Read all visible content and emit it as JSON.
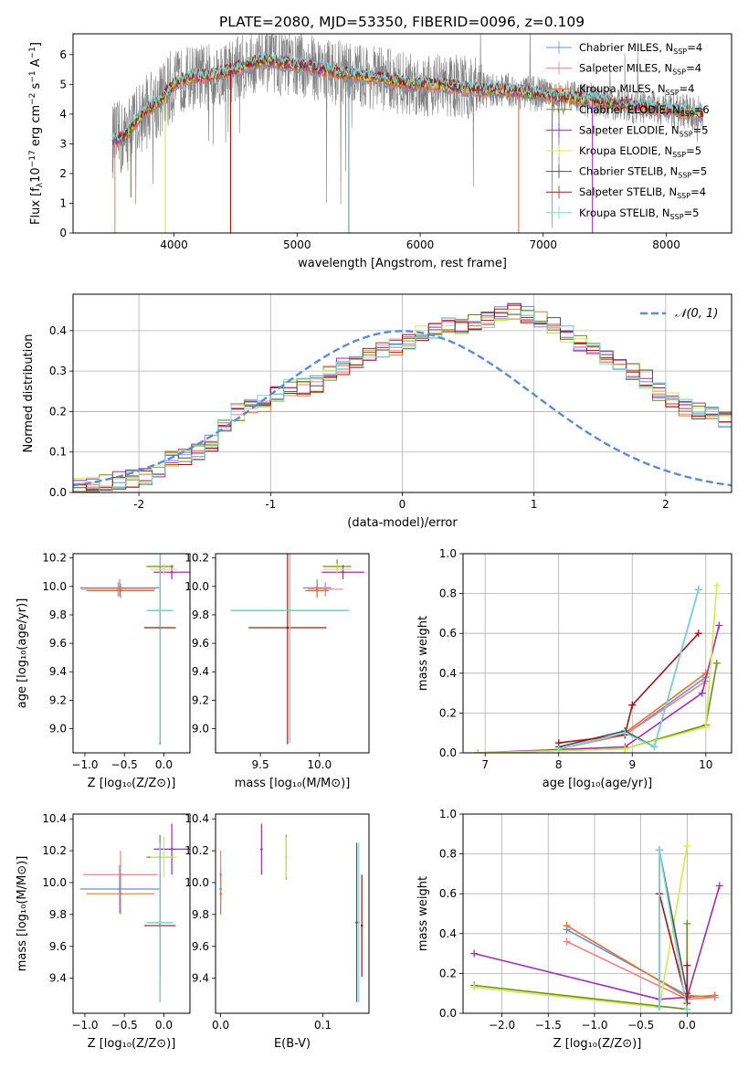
{
  "figure_title": "PLATE=2080, MJD=53350, FIBERID=0096, z=0.109",
  "colors": {
    "Chabrier MILES": "#6a8fdc",
    "Salpeter MILES": "#f08080",
    "Kroupa MILES": "#e8742a",
    "Chabrier ELODIE": "#6b8e23",
    "Salpeter ELODIE": "#9c2fb8",
    "Kroupa ELODIE": "#d4ea4c",
    "Chabrier STELIB": "#505050",
    "Salpeter STELIB": "#a81414",
    "Kroupa STELIB": "#7fd6d6",
    "normal_curve": "#5b8bd8",
    "grid": "#b0b0b0"
  },
  "chart_data": [
    {
      "id": "spectrum",
      "type": "line",
      "title": "PLATE=2080, MJD=53350, FIBERID=0096, z=0.109",
      "xlabel": "wavelength [Angstrom, rest frame]",
      "ylabel_parts": [
        "Flux [f",
        "λ",
        "10",
        "−17",
        " erg cm",
        "−2",
        " s",
        "−1",
        " A",
        "−1",
        "]"
      ],
      "xlim": [
        3180,
        8530
      ],
      "ylim": [
        0,
        6.7
      ],
      "xticks": [
        4000,
        5000,
        6000,
        7000,
        8000
      ],
      "yticks": [
        0,
        1,
        2,
        3,
        4,
        5,
        6
      ],
      "grid": false,
      "legend_position": "right",
      "legend": [
        {
          "name": "Chabrier MILES",
          "n": "4"
        },
        {
          "name": "Salpeter MILES",
          "n": "4"
        },
        {
          "name": "Kroupa MILES",
          "n": "4"
        },
        {
          "name": "Chabrier ELODIE",
          "n": "6"
        },
        {
          "name": "Salpeter ELODIE",
          "n": "5"
        },
        {
          "name": "Kroupa ELODIE",
          "n": "5"
        },
        {
          "name": "Chabrier STELIB",
          "n": "5"
        },
        {
          "name": "Salpeter STELIB",
          "n": "4"
        },
        {
          "name": "Kroupa STELIB",
          "n": "5"
        }
      ],
      "data_wavelength_range": [
        3500,
        8300
      ],
      "continuum_points": [
        [
          3500,
          3.1
        ],
        [
          3600,
          3.2
        ],
        [
          3700,
          3.8
        ],
        [
          3800,
          4.2
        ],
        [
          3900,
          4.5
        ],
        [
          4000,
          5.0
        ],
        [
          4100,
          5.2
        ],
        [
          4300,
          5.3
        ],
        [
          4500,
          5.5
        ],
        [
          4700,
          5.8
        ],
        [
          4900,
          5.7
        ],
        [
          5100,
          5.6
        ],
        [
          5300,
          5.4
        ],
        [
          5500,
          5.3
        ],
        [
          5700,
          5.2
        ],
        [
          5900,
          5.0
        ],
        [
          6100,
          5.0
        ],
        [
          6300,
          4.9
        ],
        [
          6500,
          4.8
        ],
        [
          6700,
          4.8
        ],
        [
          6900,
          4.7
        ],
        [
          7100,
          4.6
        ],
        [
          7300,
          4.5
        ],
        [
          7500,
          4.4
        ],
        [
          7700,
          4.3
        ],
        [
          7900,
          4.2
        ],
        [
          8100,
          4.1
        ],
        [
          8300,
          4.0
        ]
      ],
      "model_dips": [
        [
          3520,
          0.0
        ],
        [
          3650,
          1.2
        ],
        [
          3930,
          0.0
        ],
        [
          4460,
          0.0
        ],
        [
          5420,
          0.0
        ],
        [
          6800,
          0.0
        ],
        [
          7400,
          0.0
        ]
      ]
    },
    {
      "id": "residuals",
      "type": "line",
      "xlabel": "(data-model)/error",
      "ylabel": "Normed distribution",
      "xlim": [
        -2.5,
        2.5
      ],
      "ylim": [
        0,
        0.49
      ],
      "xticks": [
        -2,
        -1,
        0,
        1,
        2
      ],
      "yticks": [
        0.0,
        0.1,
        0.2,
        0.3,
        0.4
      ],
      "grid": true,
      "legend_position": "top-right",
      "legend": [
        "𝒩(0, 1)"
      ],
      "bin_width": 0.1,
      "histogram_envelope": [
        0.02,
        0.02,
        0.025,
        0.03,
        0.035,
        0.04,
        0.06,
        0.08,
        0.085,
        0.1,
        0.12,
        0.16,
        0.2,
        0.21,
        0.22,
        0.24,
        0.26,
        0.26,
        0.27,
        0.29,
        0.31,
        0.33,
        0.34,
        0.35,
        0.36,
        0.37,
        0.39,
        0.4,
        0.41,
        0.41,
        0.42,
        0.43,
        0.44,
        0.45,
        0.44,
        0.43,
        0.41,
        0.39,
        0.37,
        0.35,
        0.33,
        0.32,
        0.3,
        0.28,
        0.25,
        0.23,
        0.21,
        0.2,
        0.19,
        0.18,
        0.16,
        0.15,
        0.14,
        0.12,
        0.11,
        0.1,
        0.08,
        0.07,
        0.06,
        0.05,
        0.045,
        0.04,
        0.035,
        0.03,
        0.025,
        0.02,
        0.02,
        0.015,
        0.015,
        0.015
      ]
    },
    {
      "id": "age_vs_Z",
      "type": "scatter",
      "xlabel": "Z [log₁₀(Z/Z⊙)]",
      "ylabel": "age  [log₁₀(age/yr)]",
      "xlim": [
        -1.15,
        0.33
      ],
      "ylim": [
        8.83,
        10.23
      ],
      "xticks": [
        -1.0,
        -0.5,
        0.0
      ],
      "xticklabels": [
        "−1.0",
        "−0.5",
        "0.0"
      ],
      "yticks": [
        9.0,
        9.2,
        9.4,
        9.6,
        9.8,
        10.0,
        10.2
      ],
      "grid": false,
      "points": [
        {
          "model": "Chabrier MILES",
          "x": -0.56,
          "xerr": 0.5,
          "y": 9.99,
          "yerr": 0.06
        },
        {
          "model": "Salpeter MILES",
          "x": -0.58,
          "xerr": 0.47,
          "y": 9.98,
          "yerr": 0.05
        },
        {
          "model": "Kroupa MILES",
          "x": -0.55,
          "xerr": 0.43,
          "y": 9.97,
          "yerr": 0.05
        },
        {
          "model": "Chabrier ELODIE",
          "x": -0.05,
          "xerr": 0.17,
          "y": 10.14,
          "yerr": 0.05
        },
        {
          "model": "Salpeter ELODIE",
          "x": 0.1,
          "xerr": 0.23,
          "y": 10.1,
          "yerr": 0.05
        },
        {
          "model": "Kroupa ELODIE",
          "x": 0.0,
          "xerr": 0.17,
          "y": 10.12,
          "yerr": 0.04
        },
        {
          "model": "Chabrier STELIB",
          "x": -0.05,
          "xerr": 0.15,
          "y": 9.83,
          "yerr": 0.93
        },
        {
          "model": "Salpeter STELIB",
          "x": -0.05,
          "xerr": 0.2,
          "y": 9.71,
          "yerr": 0.82
        },
        {
          "model": "Kroupa STELIB",
          "x": -0.05,
          "xerr": 0.17,
          "y": 9.83,
          "yerr": 0.93
        }
      ]
    },
    {
      "id": "age_vs_mass",
      "type": "scatter",
      "xlabel": "mass [log₁₀(M/M⊙)]",
      "xlim": [
        9.12,
        10.42
      ],
      "ylim": [
        8.83,
        10.23
      ],
      "xticks": [
        9.5,
        10.0
      ],
      "xticklabels": [
        "9.5",
        "10.0"
      ],
      "yticks": [
        9.0,
        9.2,
        9.4,
        9.6,
        9.8,
        10.0,
        10.2
      ],
      "grid": false,
      "points": [
        {
          "model": "Chabrier MILES",
          "x": 9.98,
          "xerr": 0.12,
          "y": 9.99,
          "yerr": 0.06
        },
        {
          "model": "Salpeter MILES",
          "x": 10.05,
          "xerr": 0.15,
          "y": 9.98,
          "yerr": 0.05
        },
        {
          "model": "Kroupa MILES",
          "x": 9.98,
          "xerr": 0.1,
          "y": 9.97,
          "yerr": 0.05
        },
        {
          "model": "Chabrier ELODIE",
          "x": 10.15,
          "xerr": 0.12,
          "y": 10.14,
          "yerr": 0.05
        },
        {
          "model": "Salpeter ELODIE",
          "x": 10.2,
          "xerr": 0.18,
          "y": 10.1,
          "yerr": 0.05
        },
        {
          "model": "Kroupa ELODIE",
          "x": 10.15,
          "xerr": 0.12,
          "y": 10.12,
          "yerr": 0.04
        },
        {
          "model": "Chabrier STELIB",
          "x": 9.75,
          "xerr": 0.5,
          "y": 9.83,
          "yerr": 0.93
        },
        {
          "model": "Salpeter STELIB",
          "x": 9.73,
          "xerr": 0.33,
          "y": 9.71,
          "yerr": 0.82
        },
        {
          "model": "Kroupa STELIB",
          "x": 9.75,
          "xerr": 0.5,
          "y": 9.83,
          "yerr": 0.93
        }
      ]
    },
    {
      "id": "weight_vs_age",
      "type": "line",
      "xlabel": "age  [log₁₀(age/yr)]",
      "ylabel": "mass weight",
      "xlim": [
        6.7,
        10.35
      ],
      "ylim": [
        0,
        1.0
      ],
      "xticks": [
        7,
        8,
        9,
        10
      ],
      "yticks": [
        0.0,
        0.2,
        0.4,
        0.6,
        0.8,
        1.0
      ],
      "grid": true,
      "series": [
        {
          "model": "Chabrier MILES",
          "x": [
            8.0,
            8.9,
            10.0
          ],
          "y": [
            0.02,
            0.09,
            0.38
          ]
        },
        {
          "model": "Salpeter MILES",
          "x": [
            8.0,
            8.9,
            10.0
          ],
          "y": [
            0.02,
            0.09,
            0.36
          ]
        },
        {
          "model": "Kroupa MILES",
          "x": [
            8.0,
            8.9,
            10.0
          ],
          "y": [
            0.02,
            0.1,
            0.4
          ]
        },
        {
          "model": "Chabrier ELODIE",
          "x": [
            6.9,
            8.9,
            10.0,
            10.15
          ],
          "y": [
            0.0,
            0.02,
            0.14,
            0.45
          ]
        },
        {
          "model": "Salpeter ELODIE",
          "x": [
            6.9,
            8.9,
            9.95,
            10.18
          ],
          "y": [
            0.0,
            0.03,
            0.3,
            0.64
          ]
        },
        {
          "model": "Kroupa ELODIE",
          "x": [
            6.9,
            8.9,
            10.0,
            10.15
          ],
          "y": [
            0.0,
            0.02,
            0.13,
            0.84
          ]
        },
        {
          "model": "Chabrier STELIB",
          "x": [
            8.0,
            8.9,
            9.3,
            9.9
          ],
          "y": [
            0.03,
            0.11,
            0.03,
            0.82
          ]
        },
        {
          "model": "Salpeter STELIB",
          "x": [
            8.0,
            8.9,
            9.0,
            9.9
          ],
          "y": [
            0.05,
            0.09,
            0.24,
            0.6
          ]
        },
        {
          "model": "Kroupa STELIB",
          "x": [
            8.0,
            8.9,
            9.3,
            9.9
          ],
          "y": [
            0.02,
            0.1,
            0.03,
            0.82
          ]
        }
      ]
    },
    {
      "id": "mass_vs_Z",
      "type": "scatter",
      "xlabel": "Z [log₁₀(Z/Z⊙)]",
      "ylabel": "mass [log₁₀(M/M⊙)]",
      "xlim": [
        -1.15,
        0.33
      ],
      "ylim": [
        9.18,
        10.43
      ],
      "xticks": [
        -1.0,
        -0.5,
        0.0
      ],
      "xticklabels": [
        "−1.0",
        "−0.5",
        "0.0"
      ],
      "yticks": [
        9.4,
        9.6,
        9.8,
        10.0,
        10.2,
        10.4
      ],
      "grid": false,
      "points": [
        {
          "model": "Chabrier MILES",
          "x": -0.56,
          "xerr": 0.5,
          "y": 9.96,
          "yerr": 0.15
        },
        {
          "model": "Salpeter MILES",
          "x": -0.55,
          "xerr": 0.47,
          "y": 10.05,
          "yerr": 0.15
        },
        {
          "model": "Kroupa MILES",
          "x": -0.55,
          "xerr": 0.43,
          "y": 9.93,
          "yerr": 0.13
        },
        {
          "model": "Chabrier ELODIE",
          "x": -0.05,
          "xerr": 0.17,
          "y": 10.16,
          "yerr": 0.14
        },
        {
          "model": "Salpeter ELODIE",
          "x": 0.1,
          "xerr": 0.23,
          "y": 10.21,
          "yerr": 0.16
        },
        {
          "model": "Kroupa ELODIE",
          "x": 0.0,
          "xerr": 0.17,
          "y": 10.16,
          "yerr": 0.13
        },
        {
          "model": "Chabrier STELIB",
          "x": -0.05,
          "xerr": 0.15,
          "y": 9.75,
          "yerr": 0.5
        },
        {
          "model": "Salpeter STELIB",
          "x": -0.05,
          "xerr": 0.2,
          "y": 9.73,
          "yerr": 0.32
        },
        {
          "model": "Kroupa STELIB",
          "x": -0.05,
          "xerr": 0.17,
          "y": 9.75,
          "yerr": 0.5
        }
      ]
    },
    {
      "id": "mass_vs_ebv",
      "type": "scatter",
      "xlabel": "E(B-V)",
      "xlim": [
        -0.005,
        0.145
      ],
      "ylim": [
        9.18,
        10.43
      ],
      "xticks": [
        0.0,
        0.1
      ],
      "xticklabels": [
        "0.0",
        "0.1"
      ],
      "yticks": [
        9.4,
        9.6,
        9.8,
        10.0,
        10.2,
        10.4
      ],
      "grid": false,
      "points": [
        {
          "model": "Chabrier MILES",
          "x": 0.0,
          "y": 9.96,
          "yerr": 0.15
        },
        {
          "model": "Salpeter MILES",
          "x": 0.0,
          "y": 10.05,
          "yerr": 0.15
        },
        {
          "model": "Kroupa MILES",
          "x": 0.0,
          "y": 9.93,
          "yerr": 0.13
        },
        {
          "model": "Chabrier ELODIE",
          "x": 0.064,
          "y": 10.16,
          "yerr": 0.14
        },
        {
          "model": "Salpeter ELODIE",
          "x": 0.04,
          "y": 10.21,
          "yerr": 0.16
        },
        {
          "model": "Kroupa ELODIE",
          "x": 0.064,
          "y": 10.16,
          "yerr": 0.13
        },
        {
          "model": "Chabrier STELIB",
          "x": 0.133,
          "y": 9.75,
          "yerr": 0.5
        },
        {
          "model": "Salpeter STELIB",
          "x": 0.138,
          "y": 9.73,
          "yerr": 0.32
        },
        {
          "model": "Kroupa STELIB",
          "x": 0.135,
          "y": 9.75,
          "yerr": 0.5
        }
      ]
    },
    {
      "id": "weight_vs_Z",
      "type": "line",
      "xlabel": "Z [log₁₀(Z/Z⊙)]",
      "ylabel": "mass weight",
      "xlim": [
        -2.42,
        0.48
      ],
      "ylim": [
        0,
        1.0
      ],
      "xticks": [
        -2.0,
        -1.5,
        -1.0,
        -0.5,
        0.0
      ],
      "xticklabels": [
        "−2.0",
        "−1.5",
        "−1.0",
        "−0.5",
        "0.0"
      ],
      "yticks": [
        0.0,
        0.2,
        0.4,
        0.6,
        0.8,
        1.0
      ],
      "grid": true,
      "series": [
        {
          "model": "Chabrier MILES",
          "x": [
            -1.3,
            0.0,
            0.3
          ],
          "y": [
            0.42,
            0.09,
            0.08
          ]
        },
        {
          "model": "Salpeter MILES",
          "x": [
            -1.3,
            0.0,
            0.3
          ],
          "y": [
            0.36,
            0.07,
            0.08
          ]
        },
        {
          "model": "Kroupa MILES",
          "x": [
            -1.3,
            0.0,
            0.3
          ],
          "y": [
            0.44,
            0.08,
            0.09
          ]
        },
        {
          "model": "Chabrier ELODIE",
          "x": [
            -2.3,
            0.0,
            0.0
          ],
          "y": [
            0.14,
            0.02,
            0.45
          ]
        },
        {
          "model": "Salpeter ELODIE",
          "x": [
            -2.3,
            -0.3,
            0.0,
            0.35
          ],
          "y": [
            0.3,
            0.07,
            0.08,
            0.64
          ]
        },
        {
          "model": "Kroupa ELODIE",
          "x": [
            -2.3,
            -0.3,
            0.0
          ],
          "y": [
            0.13,
            0.03,
            0.84
          ]
        },
        {
          "model": "Chabrier STELIB",
          "x": [
            -0.3,
            -0.3,
            0.0
          ],
          "y": [
            0.03,
            0.82,
            0.1
          ]
        },
        {
          "model": "Salpeter STELIB",
          "x": [
            -0.3,
            0.0,
            0.0
          ],
          "y": [
            0.6,
            0.05,
            0.24
          ]
        },
        {
          "model": "Kroupa STELIB",
          "x": [
            -0.3,
            -0.3,
            0.0
          ],
          "y": [
            0.03,
            0.82,
            0.02
          ]
        }
      ]
    }
  ]
}
